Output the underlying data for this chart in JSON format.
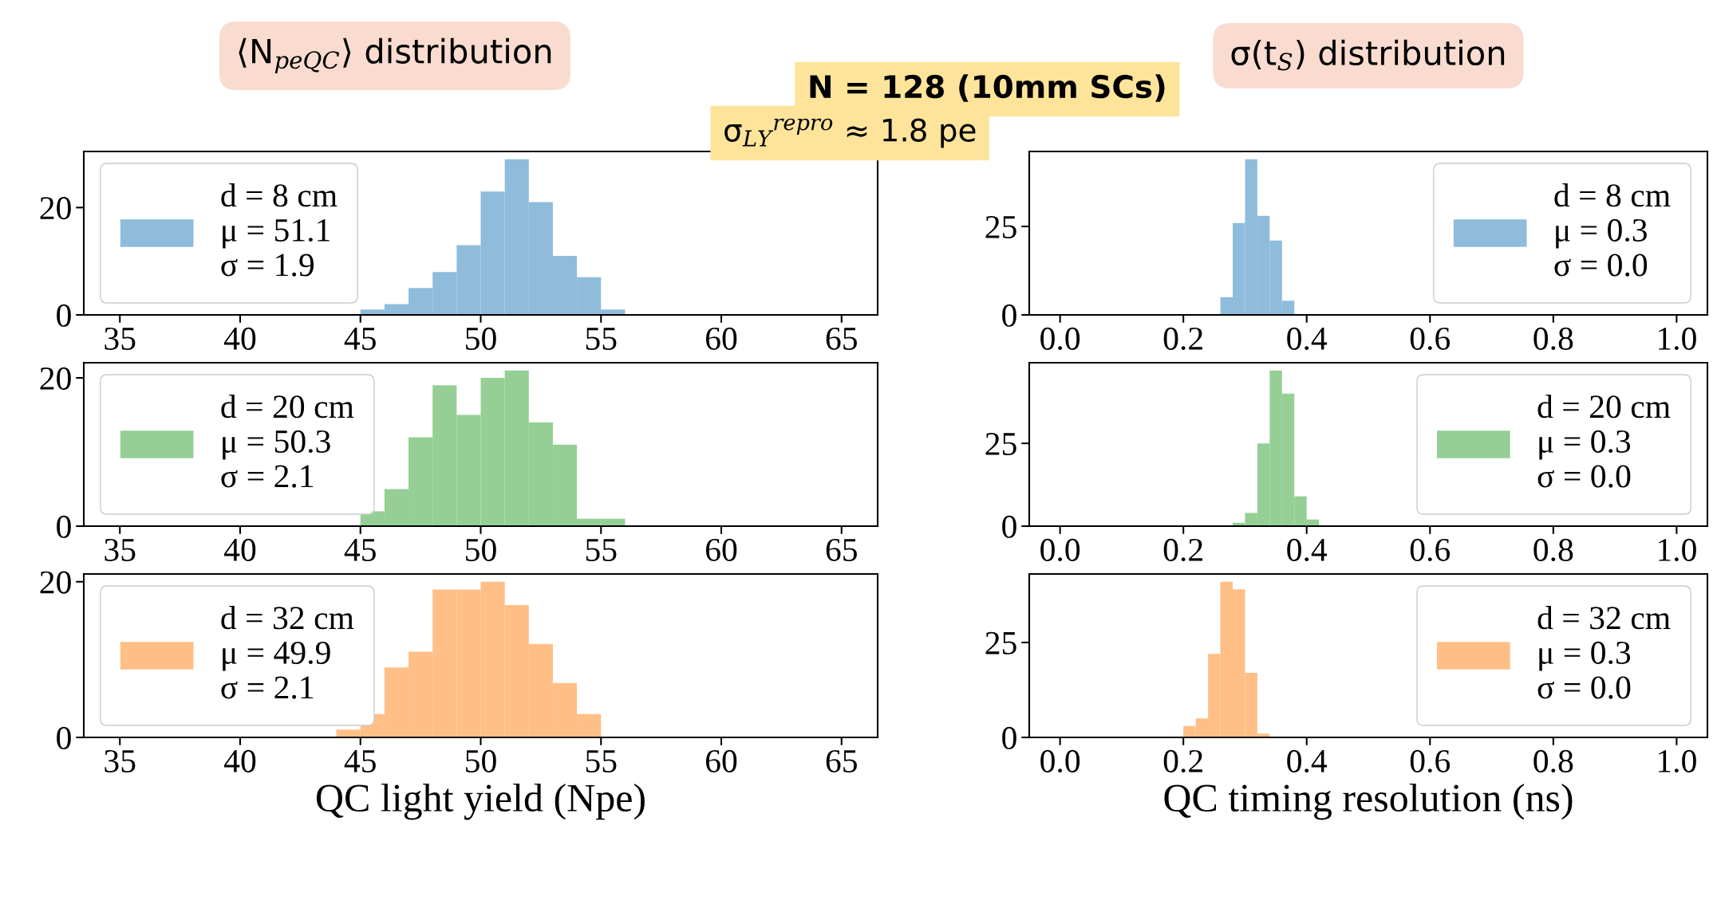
{
  "chart_data": [
    {
      "type": "histogram",
      "title": "⟨N$_{peQC}$⟩ distribution",
      "annotations": [
        "N = 128 (10mm SCs)",
        "σ$_{LY}$$^{repro}$ ≈ 1.8 pe"
      ],
      "bins": [
        45,
        46,
        47,
        48,
        49,
        50,
        51,
        52,
        53,
        54,
        55,
        56
      ],
      "series": [
        {
          "name": "d = 8 cm\nμ = 51.1\nσ = 1.9",
          "color": "#8fbcdb",
          "values": [
            1,
            2,
            5,
            8,
            13,
            23,
            29,
            21,
            11,
            7,
            1
          ]
        }
      ],
      "xlim": [
        33.5,
        66.5
      ],
      "xticks": [
        35,
        40,
        45,
        50,
        55,
        60,
        65
      ],
      "ylim": [
        0,
        30.45
      ],
      "yticks": [
        0,
        20
      ],
      "legend": "left"
    },
    {
      "type": "histogram",
      "bins": [
        45,
        46,
        47,
        48,
        49,
        50,
        51,
        52,
        53,
        54,
        55,
        56
      ],
      "series": [
        {
          "name": "d = 20 cm\nμ = 50.3\nσ = 2.1",
          "color": "#95cf95",
          "values": [
            2,
            5,
            12,
            19,
            15,
            20,
            21,
            14,
            11,
            1,
            1
          ]
        }
      ],
      "xlim": [
        33.5,
        66.5
      ],
      "xticks": [
        35,
        40,
        45,
        50,
        55,
        60,
        65
      ],
      "ylim": [
        0,
        22.05
      ],
      "yticks": [
        0,
        20
      ],
      "legend": "left"
    },
    {
      "type": "histogram",
      "xlabel": "QC light yield (Npe)",
      "bins": [
        44,
        45,
        46,
        47,
        48,
        49,
        50,
        51,
        52,
        53,
        54,
        55
      ],
      "series": [
        {
          "name": "d = 32 cm\nμ = 49.9\nσ = 2.1",
          "color": "#ffbf86",
          "values": [
            1,
            3,
            9,
            11,
            19,
            19,
            20,
            17,
            12,
            7,
            3
          ]
        }
      ],
      "xlim": [
        33.5,
        66.5
      ],
      "xticks": [
        35,
        40,
        45,
        50,
        55,
        60,
        65
      ],
      "ylim": [
        0,
        21
      ],
      "yticks": [
        0,
        20
      ],
      "legend": "left"
    },
    {
      "type": "histogram",
      "title": "σ(t$_{S}$) distribution",
      "bins": [
        0.26,
        0.28,
        0.3,
        0.32,
        0.34,
        0.36,
        0.38
      ],
      "series": [
        {
          "name": "d = 8 cm\nμ = 0.3\nσ = 0.0",
          "color": "#8fbcdb",
          "values": [
            5,
            26,
            44,
            28,
            21,
            4
          ]
        }
      ],
      "xlim": [
        -0.05,
        1.05
      ],
      "xticks": [
        {
          "value": 0,
          "label": "0.0"
        },
        {
          "value": 0.2,
          "label": "0.2"
        },
        {
          "value": 0.4,
          "label": "0.4"
        },
        {
          "value": 0.6,
          "label": "0.6"
        },
        {
          "value": 0.8,
          "label": "0.8"
        },
        {
          "value": 1,
          "label": "1.0"
        }
      ],
      "ylim": [
        0,
        46.2
      ],
      "yticks": [
        0,
        25
      ],
      "legend": "right"
    },
    {
      "type": "histogram",
      "bins": [
        0.28,
        0.3,
        0.32,
        0.34,
        0.36,
        0.38,
        0.4,
        0.42
      ],
      "series": [
        {
          "name": "d = 20 cm\nμ = 0.3\nσ = 0.0",
          "color": "#95cf95",
          "values": [
            1,
            4,
            25,
            47,
            40,
            9,
            2
          ]
        }
      ],
      "xlim": [
        -0.05,
        1.05
      ],
      "xticks": [
        {
          "value": 0,
          "label": "0.0"
        },
        {
          "value": 0.2,
          "label": "0.2"
        },
        {
          "value": 0.4,
          "label": "0.4"
        },
        {
          "value": 0.6,
          "label": "0.6"
        },
        {
          "value": 0.8,
          "label": "0.8"
        },
        {
          "value": 1,
          "label": "1.0"
        }
      ],
      "ylim": [
        0,
        49.35
      ],
      "yticks": [
        0,
        25
      ],
      "legend": "right"
    },
    {
      "type": "histogram",
      "xlabel": "QC timing resolution (ns)",
      "bins": [
        0.2,
        0.22,
        0.24,
        0.26,
        0.28,
        0.3,
        0.32,
        0.34
      ],
      "series": [
        {
          "name": "d = 32 cm\nμ = 0.3\nσ = 0.0",
          "color": "#ffbf86",
          "values": [
            3,
            5,
            22,
            41,
            39,
            17,
            1
          ]
        }
      ],
      "xlim": [
        -0.05,
        1.05
      ],
      "xticks": [
        {
          "value": 0,
          "label": "0.0"
        },
        {
          "value": 0.2,
          "label": "0.2"
        },
        {
          "value": 0.4,
          "label": "0.4"
        },
        {
          "value": 0.6,
          "label": "0.6"
        },
        {
          "value": 0.8,
          "label": "0.8"
        },
        {
          "value": 1,
          "label": "1.0"
        }
      ],
      "ylim": [
        0,
        43.05
      ],
      "yticks": [
        0,
        25
      ],
      "legend": "right"
    }
  ]
}
